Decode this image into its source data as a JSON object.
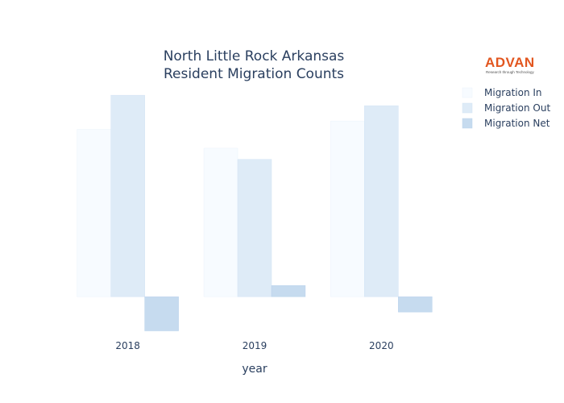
{
  "chart_data": {
    "type": "bar",
    "title_lines": [
      "North Little Rock Arkansas",
      "Resident Migration Counts"
    ],
    "xlabel": "year",
    "ylabel": "",
    "categories": [
      "2018",
      "2019",
      "2020"
    ],
    "series": [
      {
        "name": "Migration In",
        "values": [
          2400,
          2130,
          2520
        ],
        "color": "#f7fbff",
        "stroke": "#eaf2fb"
      },
      {
        "name": "Migration Out",
        "values": [
          2890,
          1970,
          2740
        ],
        "color": "#deebf7",
        "stroke": "#d2e3f4"
      },
      {
        "name": "Migration Net",
        "values": [
          -490,
          160,
          -220
        ],
        "color": "#c6dbef",
        "stroke": "#b9d2ec"
      }
    ],
    "ylim": [
      -600,
      3100
    ],
    "grid": false,
    "legend_position": "top-right"
  },
  "logo": {
    "name": "ADVAN",
    "tagline": "Research through Technology"
  }
}
